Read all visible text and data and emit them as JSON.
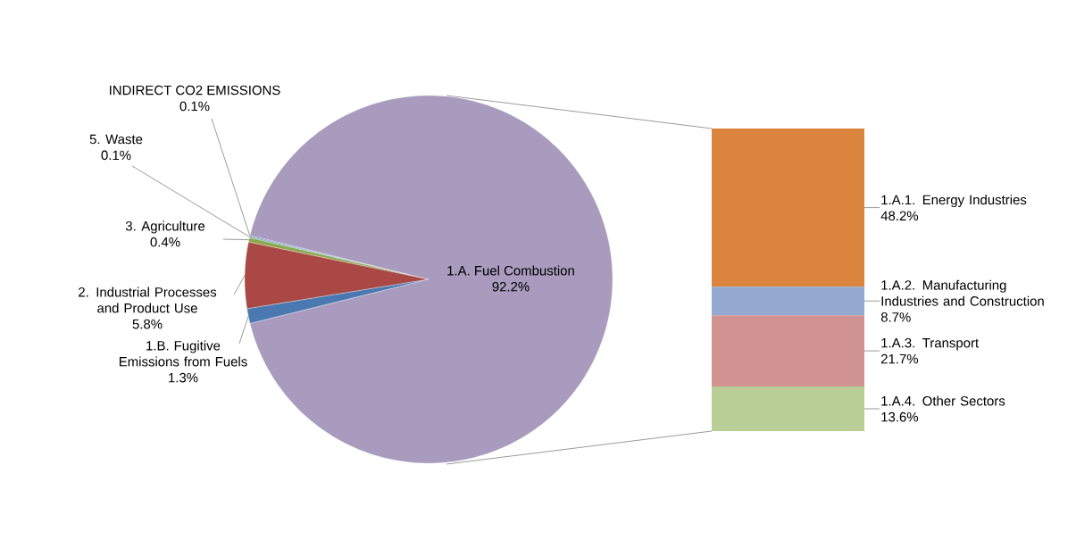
{
  "chart_data": [
    {
      "type": "pie",
      "categories": [
        "INDIRECT CO2 EMISSIONS",
        "5. Waste",
        "3. Agriculture",
        "2. Industrial Processes and Product Use",
        "1.B. Fugitive Emissions from Fuels",
        "1.A. Fuel Combustion"
      ],
      "values": [
        0.1,
        0.1,
        0.4,
        5.8,
        1.3,
        92.2
      ],
      "value_labels": [
        "0.1%",
        "0.1%",
        "0.4%",
        "5.8%",
        "1.3%",
        "92.2%"
      ],
      "colors": [
        "#7e649d",
        "#4bacc6",
        "#8ea84d",
        "#a94845",
        "#4a78b0",
        "#a99bbd"
      ]
    },
    {
      "type": "bar",
      "stacked": true,
      "categories": [
        null
      ],
      "series": [
        {
          "name": "1.A.4. Other Sectors",
          "color": "#b9cd96",
          "values": [
            13.6
          ],
          "value_labels": [
            "13.6%"
          ]
        },
        {
          "name": "1.A.3. Transport",
          "color": "#d19392",
          "values": [
            21.7
          ],
          "value_labels": [
            "21.7%"
          ]
        },
        {
          "name": "1.A.2. Manufacturing Industries and Construction",
          "color": "#93a9cf",
          "values": [
            8.7
          ],
          "value_labels": [
            "8.7%"
          ]
        },
        {
          "name": "1.A.1. Energy Industries",
          "color": "#db843d",
          "values": [
            48.2
          ],
          "value_labels": [
            "48.2%"
          ]
        }
      ]
    }
  ]
}
